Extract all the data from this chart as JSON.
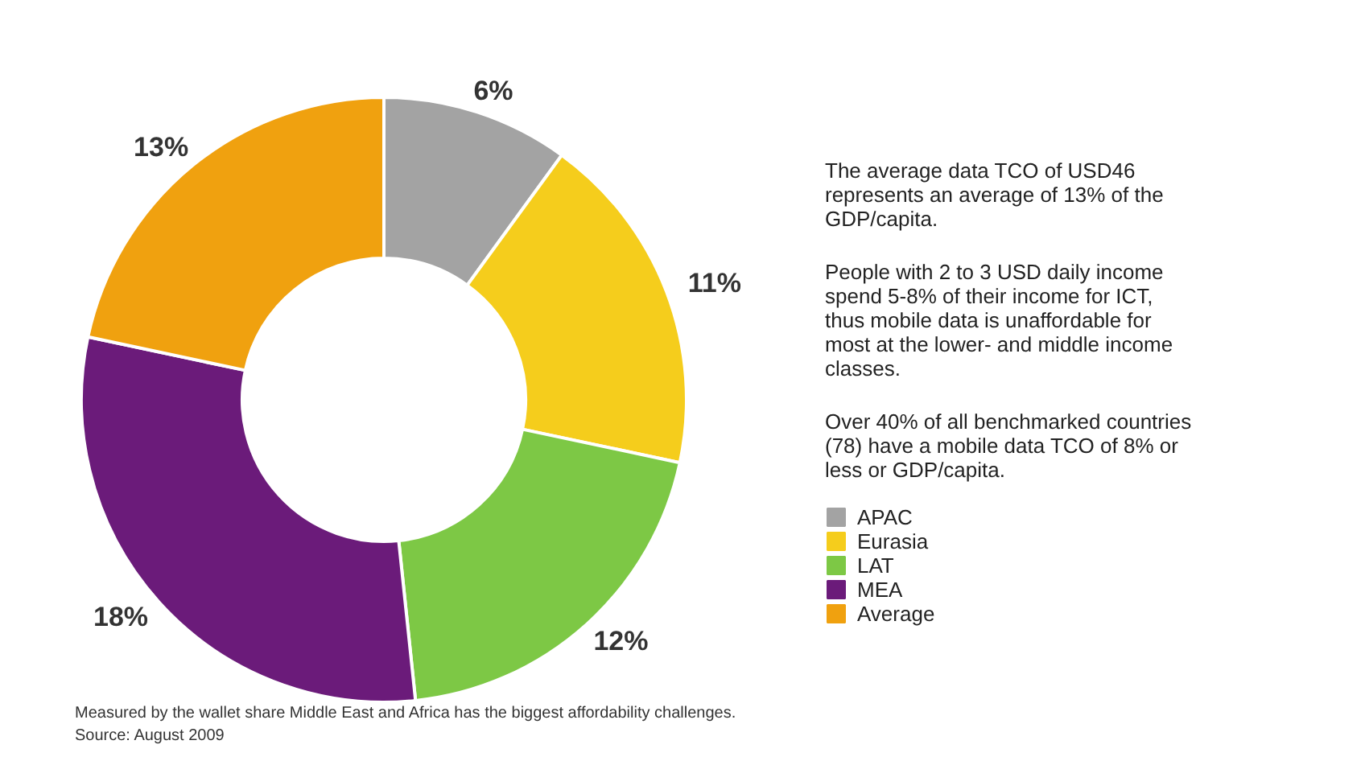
{
  "chart_data": {
    "type": "donut",
    "categories": [
      "APAC",
      "Eurasia",
      "LAT",
      "MEA",
      "Average"
    ],
    "values": [
      6,
      11,
      12,
      18,
      13
    ],
    "value_labels": [
      "6%",
      "11%",
      "12%",
      "18%",
      "13%"
    ],
    "colors": [
      "#a3a3a3",
      "#f5cd1c",
      "#7dc845",
      "#6b1b7a",
      "#f0a10f"
    ],
    "legend": "right",
    "annotations": [
      "The average data TCO of USD46 represents an average of 13% of the GDP/capita.",
      "People with 2 to 3 USD daily income spend 5-8% of their income for ICT, thus mobile data is unaffordable for most at the lower- and middle income classes.",
      "Over 40% of all benchmarked countries (78) have a mobile data TCO of 8% or less or GDP/capita.",
      "Measured by the wallet share Middle East and Africa has the biggest affordability challenges.",
      "Source: August 2009"
    ]
  }
}
